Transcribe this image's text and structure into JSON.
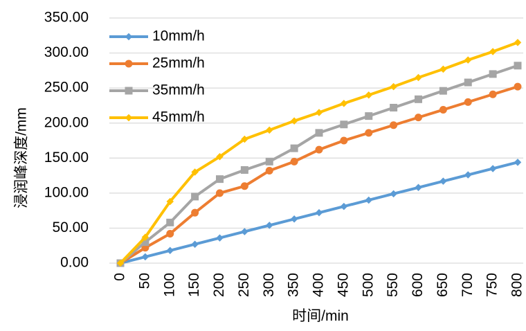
{
  "chart_data": {
    "type": "line",
    "title": "",
    "xlabel": "时间/min",
    "ylabel": "浸润峰深度/mm",
    "x": [
      0,
      50,
      100,
      150,
      200,
      250,
      300,
      350,
      400,
      450,
      500,
      550,
      600,
      650,
      700,
      750,
      800
    ],
    "x_tick_labels": [
      "0",
      "50",
      "100",
      "150",
      "200",
      "250",
      "300",
      "350",
      "400",
      "450",
      "500",
      "550",
      "600",
      "650",
      "700",
      "750",
      "800"
    ],
    "ylim": [
      0,
      350
    ],
    "y_ticks": [
      0,
      50,
      100,
      150,
      200,
      250,
      300,
      350
    ],
    "y_tick_labels": [
      "0.00",
      "50.00",
      "100.00",
      "150.00",
      "200.00",
      "250.00",
      "300.00",
      "350.00"
    ],
    "grid": "horizontal",
    "legend_position": "top-left",
    "series": [
      {
        "name": "10mm/h",
        "color": "#5B9BD5",
        "marker": "diamond",
        "values": [
          0,
          9,
          18,
          27,
          36,
          45,
          54,
          63,
          72,
          81,
          90,
          99,
          108,
          117,
          126,
          135,
          144
        ]
      },
      {
        "name": "25mm/h",
        "color": "#ED7D31",
        "marker": "circle",
        "values": [
          0,
          22,
          42,
          72,
          100,
          110,
          132,
          145,
          162,
          175,
          186,
          197,
          208,
          219,
          230,
          241,
          252
        ]
      },
      {
        "name": "35mm/h",
        "color": "#A5A5A5",
        "marker": "square",
        "values": [
          0,
          30,
          58,
          95,
          120,
          133,
          145,
          164,
          186,
          198,
          210,
          222,
          234,
          246,
          258,
          270,
          282
        ]
      },
      {
        "name": "45mm/h",
        "color": "#FFC000",
        "marker": "diamond",
        "values": [
          0,
          37,
          88,
          130,
          152,
          177,
          190,
          203,
          215,
          228,
          240,
          252,
          265,
          277,
          290,
          302,
          315
        ]
      }
    ]
  }
}
